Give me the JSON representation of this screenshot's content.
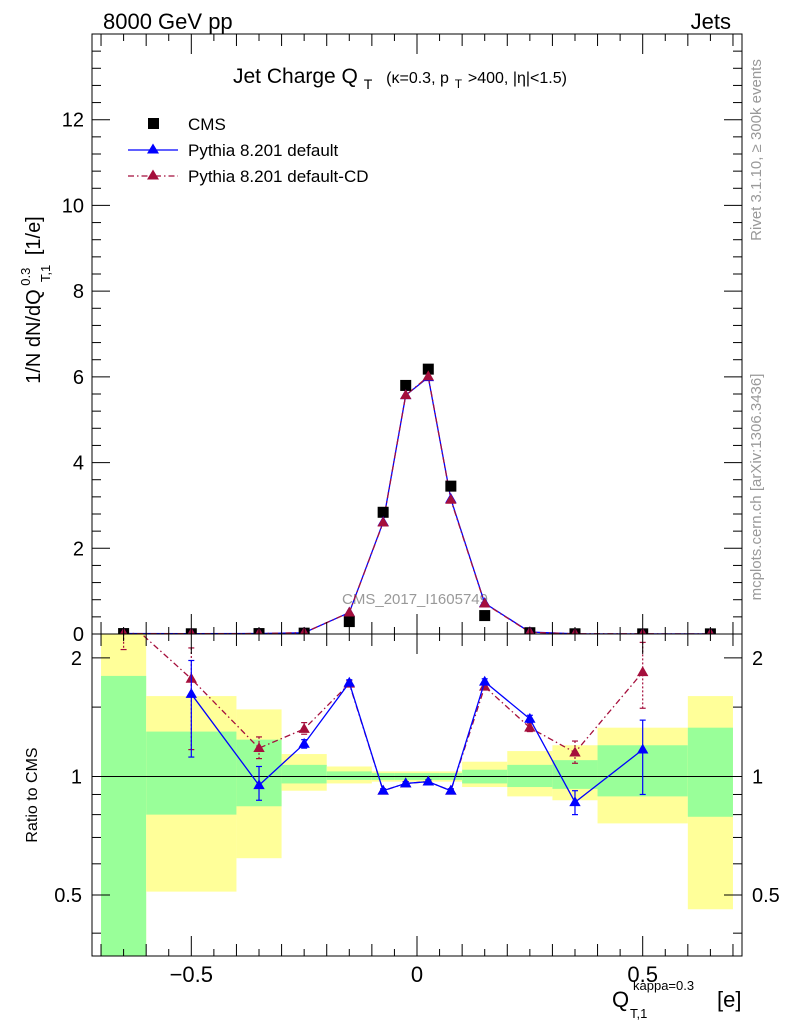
{
  "header": {
    "energy_label": "8000 GeV pp",
    "process_label": "Jets"
  },
  "side_labels": {
    "rivet": "Rivet 3.1.10, ≥ 300k events",
    "mcplots": "mcplots.cern.ch [arXiv:1306.3436]"
  },
  "watermark": "CMS_2017_I1605749",
  "main_plot": {
    "title_main": "Jet Charge Q",
    "title_sub": "T",
    "title_rest": "(κ=0.3, p",
    "title_pt_sub": "T",
    "title_tail": ">400, |η|<1.5)",
    "ylabel": "1/N dN/dQ",
    "ylabel_sup": "0.3",
    "ylabel_sub": "T,1",
    "ylabel_unit": "[1/e]"
  },
  "ratio_plot": {
    "ylabel": "Ratio to CMS"
  },
  "xaxis": {
    "label_main": "Q",
    "label_sub": "T,1",
    "label_sup": "kappa=0.3",
    "label_unit": "[e]"
  },
  "legend": [
    {
      "name": "CMS"
    },
    {
      "name": "Pythia 8.201 default"
    },
    {
      "name": "Pythia 8.201 default-CD"
    }
  ],
  "colors": {
    "data": "#000000",
    "default": "#0000ff",
    "default_cd": "#a50f3c",
    "band_green": "#99ff99",
    "band_yellow": "#ffff99"
  },
  "chart_data": [
    {
      "type": "scatter",
      "panel": "main",
      "xlim": [
        -0.72,
        0.72
      ],
      "ylim": [
        0,
        14
      ],
      "x_ticks": [
        -0.5,
        0,
        0.5
      ],
      "x_tick_labels": [
        "−0.5",
        "0",
        "0.5"
      ],
      "y_ticks": [
        0,
        2,
        4,
        6,
        8,
        10,
        12
      ],
      "y_tick_labels": [
        "0",
        "2",
        "4",
        "6",
        "8",
        "10",
        "12"
      ],
      "x": [
        -0.65,
        -0.5,
        -0.35,
        -0.25,
        -0.15,
        -0.075,
        -0.025,
        0.025,
        0.075,
        0.15,
        0.25,
        0.35,
        0.5,
        0.65
      ],
      "series": [
        {
          "name": "CMS",
          "marker": "square",
          "values": [
            0.01,
            0.005,
            0.01,
            0.02,
            0.29,
            2.84,
            5.8,
            6.18,
            3.45,
            0.43,
            0.03,
            0.005,
            0.003,
            0.003
          ]
        },
        {
          "name": "Pythia 8.201 default",
          "marker": "triangle",
          "line": "solid",
          "values": [
            0.01,
            0.008,
            0.01,
            0.03,
            0.5,
            2.61,
            5.57,
            5.99,
            3.15,
            0.72,
            0.045,
            0.004,
            0.003,
            0.003
          ]
        },
        {
          "name": "Pythia 8.201 default-CD",
          "marker": "triangle",
          "line": "dash-dot",
          "values": [
            0.01,
            0.008,
            0.01,
            0.03,
            0.5,
            2.6,
            5.57,
            6.01,
            3.13,
            0.71,
            0.04,
            0.005,
            0.004,
            0.003
          ]
        }
      ]
    },
    {
      "type": "line",
      "panel": "ratio",
      "xlim": [
        -0.72,
        0.72
      ],
      "ylim": [
        0.35,
        2.3
      ],
      "log_scale": true,
      "y_ticks": [
        0.5,
        1,
        2
      ],
      "y_tick_labels": [
        "0.5",
        "1",
        "2"
      ],
      "bins": [
        [
          -0.7,
          -0.6
        ],
        [
          -0.6,
          -0.4
        ],
        [
          -0.4,
          -0.3
        ],
        [
          -0.3,
          -0.2
        ],
        [
          -0.2,
          -0.1
        ],
        [
          -0.1,
          -0.05
        ],
        [
          -0.05,
          0
        ],
        [
          0,
          0.05
        ],
        [
          0.05,
          0.1
        ],
        [
          0.1,
          0.2
        ],
        [
          0.2,
          0.3
        ],
        [
          0.3,
          0.4
        ],
        [
          0.4,
          0.6
        ],
        [
          0.6,
          0.7
        ]
      ],
      "band_green": [
        [
          0.29,
          1.8
        ],
        [
          0.8,
          1.3
        ],
        [
          0.84,
          1.24
        ],
        [
          0.96,
          1.07
        ],
        [
          0.98,
          1.03
        ],
        [
          0.98,
          1.02
        ],
        [
          0.98,
          1.02
        ],
        [
          0.98,
          1.02
        ],
        [
          0.98,
          1.02
        ],
        [
          0.96,
          1.04
        ],
        [
          0.94,
          1.07
        ],
        [
          0.93,
          1.1
        ],
        [
          0.89,
          1.2
        ],
        [
          0.79,
          1.33
        ]
      ],
      "band_yellow": [
        [
          0.29,
          2.3
        ],
        [
          0.51,
          1.6
        ],
        [
          0.62,
          1.48
        ],
        [
          0.92,
          1.14
        ],
        [
          0.96,
          1.06
        ],
        [
          0.97,
          1.03
        ],
        [
          0.97,
          1.03
        ],
        [
          0.97,
          1.03
        ],
        [
          0.97,
          1.03
        ],
        [
          0.94,
          1.09
        ],
        [
          0.89,
          1.16
        ],
        [
          0.87,
          1.2
        ],
        [
          0.76,
          1.33
        ],
        [
          0.46,
          1.6
        ]
      ],
      "x": [
        -0.65,
        -0.5,
        -0.35,
        -0.25,
        -0.15,
        -0.075,
        -0.025,
        0.025,
        0.075,
        0.15,
        0.25,
        0.35,
        0.5,
        0.65
      ],
      "series": [
        {
          "name": "Pythia 8.201 default",
          "line": "solid",
          "values": [
            null,
            1.62,
            0.95,
            1.21,
            1.73,
            0.92,
            0.96,
            0.97,
            0.92,
            1.74,
            1.4,
            0.86,
            1.17,
            null
          ],
          "err_low": [
            null,
            0.5,
            0.08,
            0.03,
            0.03,
            0.01,
            0.01,
            0.01,
            0.01,
            0.03,
            0.03,
            0.06,
            0.27,
            null
          ],
          "err_high": [
            null,
            0.35,
            0.11,
            0.03,
            0.03,
            0.01,
            0.01,
            0.01,
            0.01,
            0.03,
            0.03,
            0.06,
            0.22,
            null
          ]
        },
        {
          "name": "Pythia 8.201 default-CD",
          "line": "dash-dot",
          "values": [
            2.6,
            1.77,
            1.18,
            1.32,
            1.72,
            0.92,
            0.96,
            0.97,
            0.92,
            1.69,
            1.33,
            1.15,
            1.84,
            null
          ],
          "err_low": [
            0.5,
            0.6,
            0.07,
            0.04,
            0.03,
            0.01,
            0.01,
            0.01,
            0.01,
            0.03,
            0.03,
            0.07,
            0.35,
            null
          ],
          "err_high": [
            0.5,
            0.35,
            0.08,
            0.05,
            0.03,
            0.01,
            0.01,
            0.01,
            0.01,
            0.03,
            0.03,
            0.08,
            0.35,
            null
          ]
        }
      ],
      "reference_line": 1
    }
  ]
}
